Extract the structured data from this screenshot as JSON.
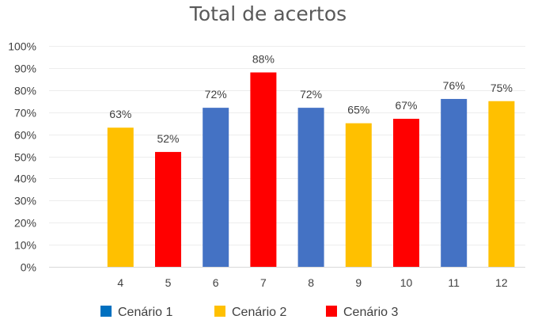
{
  "chart_data": {
    "type": "bar",
    "title": "Total de acertos",
    "xlabel": "",
    "ylabel": "",
    "ylim": [
      0,
      100
    ],
    "yticks": [
      0,
      10,
      20,
      30,
      40,
      50,
      60,
      70,
      80,
      90,
      100
    ],
    "ytick_suffix": "%",
    "grid": true,
    "legend_position": "bottom",
    "categories": [
      "",
      "4",
      "5",
      "6",
      "7",
      "8",
      "9",
      "10",
      "11",
      "12"
    ],
    "bars": [
      {
        "category": "4",
        "value": 63,
        "label": "63%",
        "series": "Cenário 2"
      },
      {
        "category": "5",
        "value": 52,
        "label": "52%",
        "series": "Cenário 3"
      },
      {
        "category": "6",
        "value": 72,
        "label": "72%",
        "series": "Cenário 1"
      },
      {
        "category": "7",
        "value": 88,
        "label": "88%",
        "series": "Cenário 3"
      },
      {
        "category": "8",
        "value": 72,
        "label": "72%",
        "series": "Cenário 1"
      },
      {
        "category": "9",
        "value": 65,
        "label": "65%",
        "series": "Cenário 2"
      },
      {
        "category": "10",
        "value": 67,
        "label": "67%",
        "series": "Cenário 3"
      },
      {
        "category": "11",
        "value": 76,
        "label": "76%",
        "series": "Cenário 1"
      },
      {
        "category": "12",
        "value": 75,
        "label": "75%",
        "series": "Cenário 2"
      }
    ],
    "series": [
      {
        "name": "Cenário 1",
        "color": "#4472C4",
        "legend_color": "#0070C0"
      },
      {
        "name": "Cenário 2",
        "color": "#FFC000",
        "legend_color": "#FFC000"
      },
      {
        "name": "Cenário 3",
        "color": "#FF0000",
        "legend_color": "#FF0000"
      }
    ]
  }
}
